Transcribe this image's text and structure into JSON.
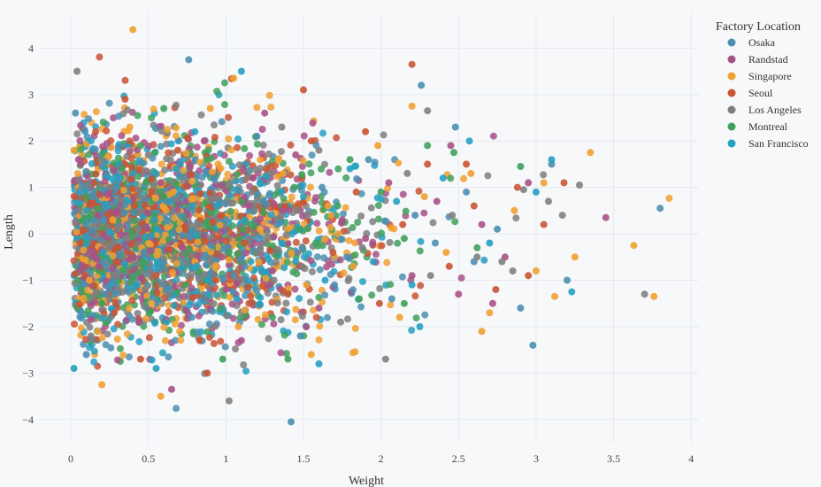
{
  "chart_data": {
    "type": "scatter",
    "title": "",
    "xlabel": "Weight",
    "ylabel": "Length",
    "xlim": [
      -0.2,
      4.05
    ],
    "ylim": [
      -4.5,
      4.75
    ],
    "xticks": [
      0,
      0.5,
      1,
      1.5,
      2,
      2.5,
      3,
      3.5,
      4
    ],
    "xtick_labels": [
      "0",
      "0.5",
      "1",
      "1.5",
      "2",
      "2.5",
      "3",
      "3.5",
      "4"
    ],
    "yticks": [
      -4,
      -3,
      -2,
      -1,
      0,
      1,
      2,
      3,
      4
    ],
    "ytick_labels": [
      "−4",
      "−3",
      "−2",
      "−1",
      "0",
      "1",
      "2",
      "3",
      "4"
    ],
    "grid": true,
    "legend": {
      "title": "Factory Location",
      "position": "top-right"
    },
    "series": [
      {
        "name": "Osaka",
        "color": "#4a8fb0",
        "points": [
          [
            0.03,
            2.6
          ],
          [
            0.14,
            0.8
          ],
          [
            0.22,
            -1.3
          ],
          [
            0.35,
            1.9
          ],
          [
            0.47,
            -0.4
          ],
          [
            0.62,
            0.7
          ],
          [
            0.78,
            -1.8
          ],
          [
            0.92,
            1.2
          ],
          [
            1.05,
            -0.9
          ],
          [
            1.2,
            2.1
          ],
          [
            1.33,
            0.2
          ],
          [
            1.48,
            -2.2
          ],
          [
            1.62,
            1.0
          ],
          [
            1.78,
            -0.5
          ],
          [
            1.92,
            1.6
          ],
          [
            2.07,
            -1.4
          ],
          [
            2.22,
            0.4
          ],
          [
            2.35,
            -0.2
          ],
          [
            2.48,
            2.3
          ],
          [
            2.6,
            -0.6
          ],
          [
            2.75,
            0.1
          ],
          [
            2.9,
            -1.6
          ],
          [
            3.1,
            1.5
          ],
          [
            3.2,
            -1.0
          ],
          [
            3.8,
            0.55
          ],
          [
            2.98,
            -2.4
          ],
          [
            1.42,
            -4.05
          ],
          [
            0.76,
            3.75
          ],
          [
            2.26,
            3.2
          ],
          [
            0.4,
            1.3
          ],
          [
            0.55,
            -1.5
          ],
          [
            1.0,
            0.3
          ],
          [
            1.7,
            -1.1
          ],
          [
            2.55,
            0.9
          ],
          [
            0.1,
            -2.6
          ]
        ]
      },
      {
        "name": "Randstad",
        "color": "#a85186",
        "points": [
          [
            0.05,
            1.6
          ],
          [
            0.18,
            -0.7
          ],
          [
            0.3,
            0.5
          ],
          [
            0.44,
            -1.9
          ],
          [
            0.58,
            1.1
          ],
          [
            0.72,
            -0.3
          ],
          [
            0.86,
            2.0
          ],
          [
            1.0,
            -1.2
          ],
          [
            1.15,
            0.6
          ],
          [
            1.3,
            -0.8
          ],
          [
            1.45,
            1.7
          ],
          [
            1.6,
            -1.6
          ],
          [
            1.75,
            0.3
          ],
          [
            1.9,
            -0.1
          ],
          [
            2.05,
            1.1
          ],
          [
            2.2,
            -0.9
          ],
          [
            2.36,
            0.7
          ],
          [
            2.5,
            -1.3
          ],
          [
            2.65,
            0.2
          ],
          [
            2.8,
            -0.5
          ],
          [
            2.95,
            1.1
          ],
          [
            3.45,
            0.35
          ],
          [
            2.45,
            1.9
          ],
          [
            0.65,
            -3.35
          ],
          [
            1.25,
            2.6
          ],
          [
            0.25,
            0.9
          ],
          [
            1.1,
            -2.3
          ],
          [
            2.72,
            -1.5
          ]
        ]
      },
      {
        "name": "Singapore",
        "color": "#f0a030",
        "points": [
          [
            0.4,
            4.4
          ],
          [
            0.02,
            1.8
          ],
          [
            0.12,
            -1.0
          ],
          [
            0.27,
            0.3
          ],
          [
            0.38,
            2.3
          ],
          [
            0.52,
            -1.5
          ],
          [
            0.66,
            0.9
          ],
          [
            0.8,
            -0.6
          ],
          [
            0.95,
            1.5
          ],
          [
            1.08,
            -2.0
          ],
          [
            1.22,
            0.1
          ],
          [
            1.37,
            1.3
          ],
          [
            1.52,
            -1.1
          ],
          [
            1.66,
            0.6
          ],
          [
            1.82,
            -0.7
          ],
          [
            1.98,
            1.9
          ],
          [
            2.12,
            -1.8
          ],
          [
            2.28,
            0.8
          ],
          [
            2.42,
            -0.4
          ],
          [
            2.58,
            1.3
          ],
          [
            2.7,
            -1.7
          ],
          [
            2.86,
            0.5
          ],
          [
            3.0,
            -0.8
          ],
          [
            3.12,
            -1.35
          ],
          [
            3.25,
            -0.5
          ],
          [
            3.35,
            1.75
          ],
          [
            3.63,
            -0.25
          ],
          [
            3.76,
            -1.35
          ],
          [
            0.2,
            -3.25
          ],
          [
            0.58,
            -3.5
          ],
          [
            1.05,
            3.35
          ],
          [
            2.2,
            2.75
          ],
          [
            3.05,
            1.1
          ],
          [
            0.9,
            2.7
          ],
          [
            1.55,
            -2.6
          ],
          [
            2.65,
            -2.1
          ]
        ]
      },
      {
        "name": "Seoul",
        "color": "#c95434",
        "points": [
          [
            0.06,
            -0.2
          ],
          [
            0.16,
            2.2
          ],
          [
            0.28,
            -1.7
          ],
          [
            0.41,
            0.6
          ],
          [
            0.55,
            -0.9
          ],
          [
            0.69,
            1.8
          ],
          [
            0.83,
            -2.3
          ],
          [
            0.97,
            0.4
          ],
          [
            1.12,
            -0.2
          ],
          [
            1.26,
            1.4
          ],
          [
            1.4,
            -1.3
          ],
          [
            1.55,
            2.0
          ],
          [
            1.69,
            -0.4
          ],
          [
            1.84,
            0.9
          ],
          [
            1.99,
            -1.5
          ],
          [
            2.14,
            0.2
          ],
          [
            2.3,
            1.5
          ],
          [
            2.44,
            -0.7
          ],
          [
            2.6,
            0.6
          ],
          [
            2.74,
            -1.2
          ],
          [
            2.88,
            1.0
          ],
          [
            3.05,
            0.2
          ],
          [
            2.2,
            3.65
          ],
          [
            0.35,
            2.9
          ],
          [
            0.88,
            -3.0
          ],
          [
            1.5,
            3.1
          ],
          [
            3.18,
            1.1
          ],
          [
            2.95,
            -0.9
          ],
          [
            0.15,
            1.1
          ],
          [
            1.9,
            2.2
          ],
          [
            0.45,
            -2.7
          ],
          [
            2.55,
            1.5
          ]
        ]
      },
      {
        "name": "Los Angeles",
        "color": "#7f7f7f",
        "points": [
          [
            0.04,
            3.5
          ],
          [
            0.13,
            -2.2
          ],
          [
            0.25,
            1.0
          ],
          [
            0.36,
            -0.1
          ],
          [
            0.5,
            1.7
          ],
          [
            0.63,
            -1.3
          ],
          [
            0.77,
            0.2
          ],
          [
            0.9,
            -0.6
          ],
          [
            1.02,
            -3.6
          ],
          [
            1.17,
            0.9
          ],
          [
            1.31,
            -1.0
          ],
          [
            1.46,
            0.5
          ],
          [
            1.6,
            1.8
          ],
          [
            1.74,
            -1.9
          ],
          [
            1.88,
            -0.3
          ],
          [
            2.03,
            -2.7
          ],
          [
            2.17,
            1.3
          ],
          [
            2.32,
            -0.9
          ],
          [
            2.46,
            0.4
          ],
          [
            2.62,
            -0.5
          ],
          [
            2.78,
            -0.6
          ],
          [
            2.92,
            0.95
          ],
          [
            3.08,
            0.7
          ],
          [
            3.17,
            0.4
          ],
          [
            3.28,
            1.05
          ],
          [
            3.7,
            -1.3
          ],
          [
            2.3,
            2.65
          ],
          [
            0.3,
            -0.9
          ],
          [
            1.36,
            2.3
          ],
          [
            2.85,
            -0.8
          ]
        ]
      },
      {
        "name": "Montreal",
        "color": "#3fa05a",
        "points": [
          [
            0.08,
            0.3
          ],
          [
            0.2,
            -1.5
          ],
          [
            0.33,
            1.4
          ],
          [
            0.46,
            -0.6
          ],
          [
            0.6,
            0.8
          ],
          [
            0.74,
            -1.1
          ],
          [
            0.88,
            1.6
          ],
          [
            1.02,
            -0.4
          ],
          [
            1.16,
            0.2
          ],
          [
            1.3,
            -1.8
          ],
          [
            1.44,
            1.0
          ],
          [
            1.58,
            -0.2
          ],
          [
            1.72,
            0.6
          ],
          [
            1.86,
            -1.4
          ],
          [
            2.0,
            0.9
          ],
          [
            2.15,
            -0.1
          ],
          [
            2.3,
            1.9
          ],
          [
            2.47,
            1.75
          ],
          [
            2.62,
            -0.3
          ],
          [
            2.9,
            1.45
          ],
          [
            0.6,
            2.7
          ],
          [
            1.4,
            -2.7
          ],
          [
            2.15,
            -1.5
          ],
          [
            0.98,
            -2.7
          ],
          [
            1.8,
            1.6
          ],
          [
            0.45,
            1.9
          ]
        ]
      },
      {
        "name": "San Francisco",
        "color": "#26a0c0",
        "points": [
          [
            0.02,
            -2.9
          ],
          [
            0.1,
            0.5
          ],
          [
            0.21,
            -0.4
          ],
          [
            0.32,
            1.2
          ],
          [
            0.43,
            -1.1
          ],
          [
            0.56,
            0.1
          ],
          [
            0.68,
            1.4
          ],
          [
            0.81,
            -0.7
          ],
          [
            0.94,
            0.6
          ],
          [
            1.07,
            -1.4
          ],
          [
            1.1,
            3.5
          ],
          [
            1.22,
            1.1
          ],
          [
            1.36,
            -0.2
          ],
          [
            1.5,
            0.8
          ],
          [
            1.64,
            -1.0
          ],
          [
            1.8,
            1.4
          ],
          [
            1.95,
            -0.6
          ],
          [
            2.1,
            0.7
          ],
          [
            2.25,
            -2.0
          ],
          [
            2.4,
            1.2
          ],
          [
            2.57,
            2.0
          ],
          [
            3.0,
            0.9
          ],
          [
            3.1,
            1.6
          ],
          [
            3.23,
            -1.25
          ],
          [
            0.55,
            -2.9
          ],
          [
            1.6,
            -2.8
          ],
          [
            2.2,
            -1.1
          ],
          [
            0.8,
            2.2
          ],
          [
            1.45,
            -0.6
          ],
          [
            2.7,
            -0.2
          ]
        ]
      }
    ]
  }
}
